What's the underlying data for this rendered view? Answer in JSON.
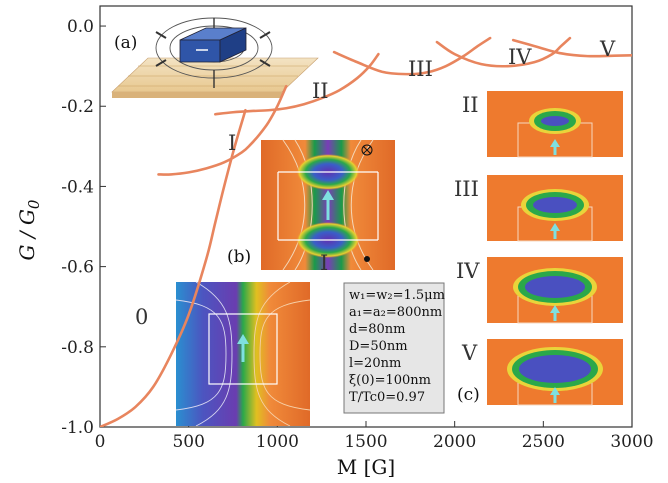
{
  "chart_data": {
    "type": "line",
    "xlabel": "M [G]",
    "ylabel": "G / G0",
    "xlim": [
      0,
      3000
    ],
    "ylim": [
      -1.0,
      0.05
    ],
    "x_ticks": [
      0,
      500,
      1000,
      1500,
      2000,
      2500,
      3000
    ],
    "y_ticks": [
      -1.0,
      -0.8,
      -0.6,
      -0.4,
      -0.2,
      0.0
    ],
    "x_tick_labels": [
      "0",
      "500",
      "1000",
      "1500",
      "2000",
      "2500",
      "3000"
    ],
    "y_tick_labels": [
      "-1.0",
      "-0.8",
      "-0.6",
      "-0.4",
      "-0.2",
      "0.0"
    ],
    "line_color": "#e8855e",
    "series": [
      {
        "label": "0",
        "x": [
          0,
          100,
          200,
          300,
          400,
          500,
          600,
          650,
          700,
          760,
          820
        ],
        "y": [
          -1.0,
          -0.98,
          -0.95,
          -0.9,
          -0.82,
          -0.72,
          -0.58,
          -0.49,
          -0.4,
          -0.3,
          -0.21
        ]
      },
      {
        "label": "I",
        "x": [
          330,
          400,
          500,
          600,
          700,
          800,
          850,
          900,
          950,
          1000,
          1050
        ],
        "y": [
          -0.37,
          -0.37,
          -0.365,
          -0.355,
          -0.34,
          -0.315,
          -0.295,
          -0.27,
          -0.24,
          -0.2,
          -0.15
        ]
      },
      {
        "label": "II",
        "x": [
          650,
          750,
          850,
          950,
          1050,
          1150,
          1250,
          1350,
          1450,
          1520,
          1570
        ],
        "y": [
          -0.22,
          -0.215,
          -0.212,
          -0.21,
          -0.205,
          -0.195,
          -0.18,
          -0.16,
          -0.13,
          -0.1,
          -0.07
        ]
      },
      {
        "label": "III",
        "x": [
          1320,
          1450,
          1600,
          1750,
          1850,
          1950,
          2050,
          2130,
          2200
        ],
        "y": [
          -0.065,
          -0.09,
          -0.115,
          -0.12,
          -0.115,
          -0.1,
          -0.075,
          -0.05,
          -0.03
        ]
      },
      {
        "label": "IV",
        "x": [
          1900,
          2000,
          2150,
          2300,
          2450,
          2550,
          2600,
          2650
        ],
        "y": [
          -0.04,
          -0.07,
          -0.095,
          -0.1,
          -0.09,
          -0.07,
          -0.05,
          -0.03
        ]
      },
      {
        "label": "V",
        "x": [
          2330,
          2450,
          2600,
          2750,
          2900,
          3000
        ],
        "y": [
          -0.035,
          -0.05,
          -0.068,
          -0.075,
          -0.074,
          -0.073
        ]
      }
    ],
    "branch_labels": [
      "0",
      "I",
      "II",
      "III",
      "IV",
      "V"
    ],
    "panel_labels": [
      "(a)",
      "(b)",
      "(c)"
    ],
    "inset_labels": [
      "I",
      "II",
      "III",
      "IV",
      "V"
    ],
    "parameters": [
      "w₁=w₂=1.5μm",
      "a₁=a₂=800nm",
      "d=80nm",
      "D=50nm",
      "l=20nm",
      "ξ(0)=100nm",
      "T/Tc0=0.97"
    ],
    "grid": false,
    "legend": "none"
  }
}
